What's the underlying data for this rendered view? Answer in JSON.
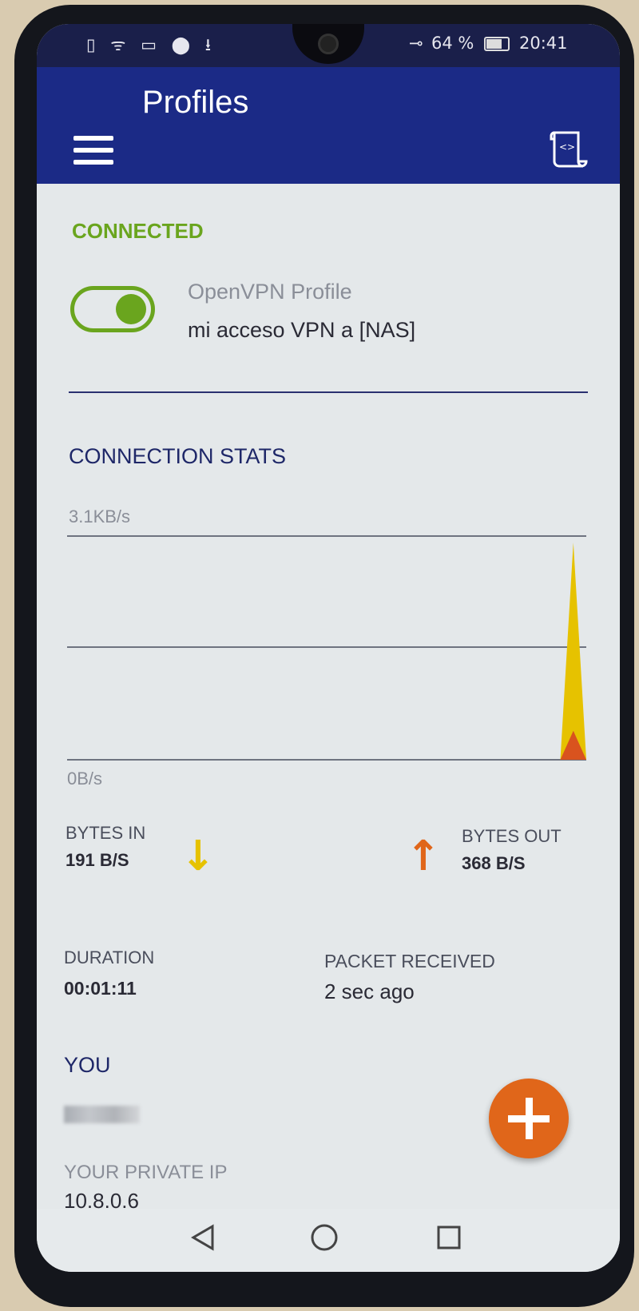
{
  "status_bar": {
    "battery": "64 %",
    "time": "20:41",
    "icons": [
      "sim-alert-icon",
      "wifi-icon",
      "vpn-badge-icon",
      "location-icon",
      "download-icon",
      "vpn-key-icon",
      "battery-icon"
    ]
  },
  "app_bar": {
    "title": "Profiles",
    "menu_icon": "hamburger-icon",
    "action_icon": "log-script-icon"
  },
  "connection": {
    "status": "CONNECTED",
    "status_color": "#6aa51e",
    "toggle_on": true,
    "profile_type": "OpenVPN Profile",
    "profile_name": "mi acceso VPN a [NAS]"
  },
  "stats": {
    "heading": "CONNECTION STATS",
    "bytes_in_label": "BYTES IN",
    "bytes_in_value": "191 B/S",
    "bytes_in_color": "#e6c200",
    "bytes_out_label": "BYTES OUT",
    "bytes_out_value": "368 B/S",
    "bytes_out_color": "#e0661a",
    "duration_label": "DURATION",
    "duration_value": "00:01:11",
    "packet_label": "PACKET RECEIVED",
    "packet_value": "2 sec ago"
  },
  "chart_data": {
    "type": "area",
    "y_max_label": "3.1KB/s",
    "y_min_label": "0B/s",
    "ylim": [
      0,
      3.1
    ],
    "grid": true,
    "series": [
      {
        "values": [
          0,
          0,
          0,
          0,
          0,
          0,
          0,
          0,
          0,
          0,
          0,
          0,
          0,
          0,
          0,
          0,
          0,
          0,
          0,
          0,
          0,
          0,
          0,
          0,
          0,
          0,
          0,
          0,
          0,
          0,
          0,
          0,
          0,
          0,
          0,
          0,
          0,
          0,
          0,
          3.0,
          0
        ],
        "color": "#e6c200"
      },
      {
        "values": [
          0,
          0,
          0,
          0,
          0,
          0,
          0,
          0,
          0,
          0,
          0,
          0,
          0,
          0,
          0,
          0,
          0,
          0,
          0,
          0,
          0,
          0,
          0,
          0,
          0,
          0,
          0,
          0,
          0,
          0,
          0,
          0,
          0,
          0,
          0,
          0,
          0,
          0,
          0,
          0.4,
          0
        ],
        "color": "#d9531e"
      }
    ]
  },
  "you": {
    "heading": "YOU",
    "private_ip_label": "YOUR PRIVATE IP",
    "private_ip_value": "10.8.0.6"
  },
  "fab": {
    "icon": "plus-icon",
    "color": "#e0661a"
  },
  "nav_bar": {
    "back": "back-icon",
    "home": "home-icon",
    "recents": "recents-icon"
  }
}
